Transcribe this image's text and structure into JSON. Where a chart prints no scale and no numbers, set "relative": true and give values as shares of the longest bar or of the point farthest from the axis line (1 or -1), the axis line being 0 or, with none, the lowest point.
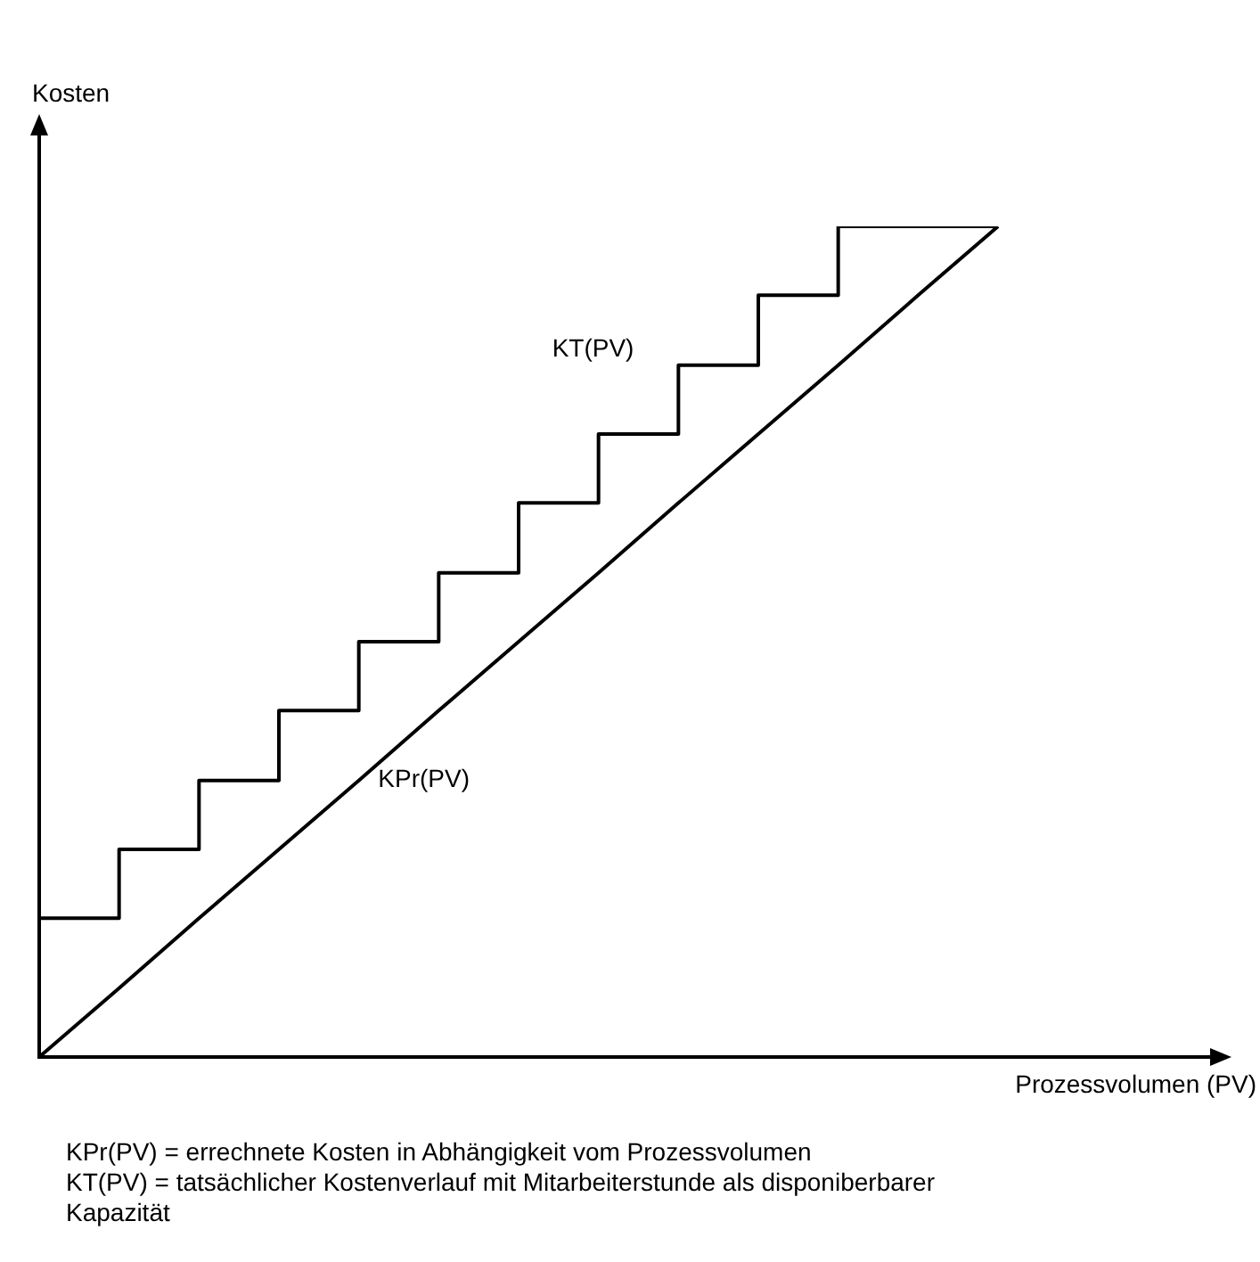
{
  "chart_data": {
    "type": "line",
    "relative": true,
    "xlabel": "Prozessvolumen (PV)",
    "ylabel": "Kosten",
    "categories": [
      null,
      null,
      null,
      null,
      null,
      null,
      null,
      null,
      null,
      null,
      null,
      null,
      null
    ],
    "series": [
      {
        "name": "KT(PV)",
        "type": "step",
        "color": "#000000",
        "values": [
          0.083,
          0.167,
          0.25,
          0.333,
          0.417,
          0.5,
          0.583,
          0.667,
          0.75,
          0.833,
          0.917,
          1,
          1
        ]
      },
      {
        "name": "KPr(PV)",
        "type": "line",
        "color": "#000000",
        "values": [
          0,
          0.083,
          0.167,
          0.25,
          0.333,
          0.417,
          0.5,
          0.583,
          0.667,
          0.75,
          0.833,
          0.917,
          1
        ]
      }
    ],
    "legend": false,
    "marker": "none",
    "annotations": [
      "KPr(PV)  = errechnete Kosten in Abhängigkeit vom Prozessvolumen",
      "KT(PV) = tatsächlicher Kostenverlauf mit Mitarbeiterstunde als disponiberbarer Kapazität"
    ]
  }
}
